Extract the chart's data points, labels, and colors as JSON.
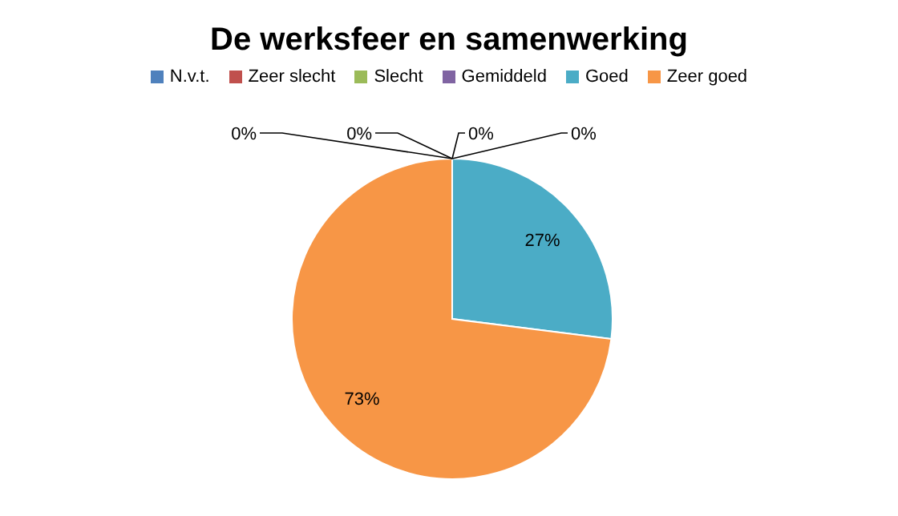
{
  "chart_data": {
    "type": "pie",
    "title": "De werksfeer en samenwerking",
    "categories": [
      "N.v.t.",
      "Zeer slecht",
      "Slecht",
      "Gemiddeld",
      "Goed",
      "Zeer goed"
    ],
    "values": [
      0,
      0,
      0,
      0,
      27,
      73
    ],
    "colors": [
      "#4f81bd",
      "#c0504d",
      "#9bbb59",
      "#8064a2",
      "#4bacc6",
      "#f79646"
    ],
    "value_labels": [
      "0%",
      "0%",
      "0%",
      "0%",
      "27%",
      "73%"
    ],
    "legend": "top"
  }
}
